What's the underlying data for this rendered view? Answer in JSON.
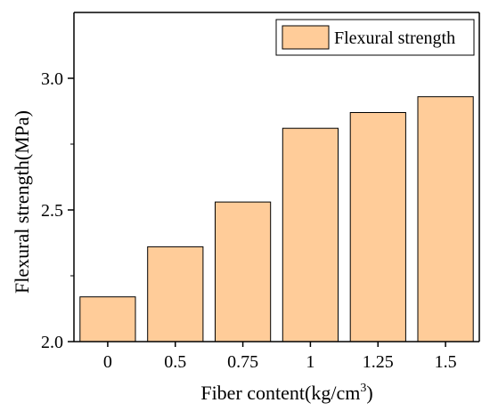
{
  "chart_data": {
    "type": "bar",
    "categories": [
      "0",
      "0.5",
      "0.75",
      "1",
      "1.25",
      "1.5"
    ],
    "series": [
      {
        "name": "Flexural strength",
        "values": [
          2.17,
          2.36,
          2.53,
          2.81,
          2.87,
          2.93
        ]
      }
    ],
    "xlabel": "Fiber content(kg/cm",
    "xlabel_sup": "3",
    "xlabel_suffix": ")",
    "ylabel": "Flexural strength(MPa)",
    "ylim": [
      2.0,
      3.25
    ],
    "yticks": [
      2.0,
      2.5,
      3.0
    ],
    "ytick_labels": [
      "2.0",
      "2.5",
      "3.0"
    ],
    "grid": false,
    "legend_position": "top-right",
    "colors": {
      "bar_fill": "#FFCC99",
      "bar_stroke": "#000000"
    }
  }
}
